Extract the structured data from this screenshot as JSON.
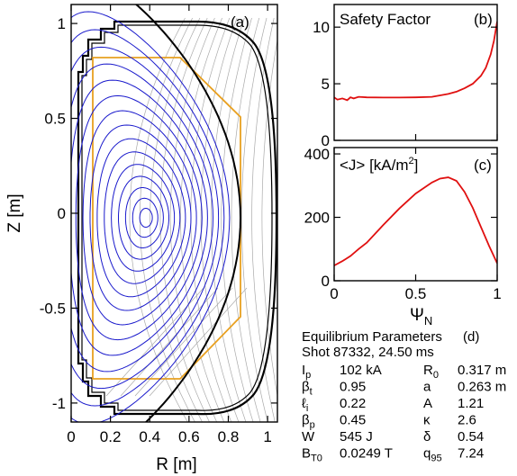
{
  "panel_a": {
    "tag": "(a)",
    "xlabel": "R [m]",
    "ylabel": "Z [m]",
    "x_ticks": [
      "0",
      "0.2",
      "0.4",
      "0.6",
      "0.8",
      "1"
    ],
    "y_ticks": [
      "1",
      "0.5",
      "0",
      "-0.5",
      "-1"
    ],
    "colors": {
      "flux_surface": "#1a1acc",
      "separatrix": "#000000",
      "vessel": "#000000",
      "limiter": "#e8a020",
      "vacuum_flux": "#aaaaaa"
    }
  },
  "panel_b": {
    "tag": "(b)",
    "title": "Safety Factor",
    "y_ticks": [
      "10",
      "5",
      "0"
    ],
    "color": "#e01010"
  },
  "panel_c": {
    "tag": "(c)",
    "title_main": "<J> [kA/m",
    "title_sup": "2",
    "title_end": "]",
    "y_ticks": [
      "400",
      "200",
      "0"
    ],
    "x_ticks": [
      "0",
      "0.5",
      "1"
    ],
    "xlabel_main": "Ψ",
    "xlabel_sub": "N",
    "color": "#e01010"
  },
  "chart_data": [
    {
      "type": "line",
      "panel": "b",
      "title": "Safety Factor",
      "xlim": [
        0,
        1
      ],
      "ylim": [
        0,
        12
      ],
      "x": [
        0.0,
        0.02,
        0.05,
        0.08,
        0.1,
        0.12,
        0.15,
        0.2,
        0.3,
        0.4,
        0.5,
        0.6,
        0.7,
        0.75,
        0.8,
        0.85,
        0.9,
        0.93,
        0.96,
        0.98,
        1.0
      ],
      "y": [
        3.8,
        3.6,
        3.7,
        3.55,
        3.8,
        3.7,
        3.85,
        3.8,
        3.78,
        3.78,
        3.8,
        3.85,
        4.1,
        4.3,
        4.6,
        5.0,
        5.7,
        6.4,
        7.6,
        8.8,
        10.5
      ]
    },
    {
      "type": "line",
      "panel": "c",
      "title": "<J> [kA/m2]",
      "xlabel": "ΨN",
      "xlim": [
        0,
        1
      ],
      "ylim": [
        0,
        420
      ],
      "x": [
        0.0,
        0.05,
        0.1,
        0.15,
        0.2,
        0.3,
        0.4,
        0.5,
        0.6,
        0.65,
        0.7,
        0.75,
        0.8,
        0.85,
        0.9,
        0.95,
        1.0
      ],
      "y": [
        48,
        62,
        78,
        100,
        120,
        175,
        228,
        275,
        310,
        322,
        326,
        315,
        280,
        230,
        170,
        110,
        55
      ]
    }
  ],
  "equilibrium": {
    "title": "Equilibrium Parameters",
    "tag": "(d)",
    "shot": "Shot 87332, 24.50 ms",
    "rows": [
      {
        "sym": "I",
        "sub": "p",
        "val": "102 kA",
        "sym2": "R",
        "sub2": "0",
        "val2": "0.317 m"
      },
      {
        "sym": "β",
        "sub": "t",
        "val": "0.95",
        "sym2": "a",
        "sub2": "",
        "val2": "0.263 m"
      },
      {
        "sym": "ℓ",
        "sub": "i",
        "val": "0.22",
        "sym2": "A",
        "sub2": "",
        "val2": "1.21"
      },
      {
        "sym": "β",
        "sub": "p",
        "val": "0.45",
        "sym2": "κ",
        "sub2": "",
        "val2": "2.6"
      },
      {
        "sym": "W",
        "sub": "",
        "val": "545 J",
        "sym2": "δ",
        "sub2": "",
        "val2": "0.54"
      },
      {
        "sym": "B",
        "sub": "T0",
        "val": "0.0249 T",
        "sym2": "q",
        "sub2": "95",
        "val2": "7.24"
      }
    ]
  }
}
